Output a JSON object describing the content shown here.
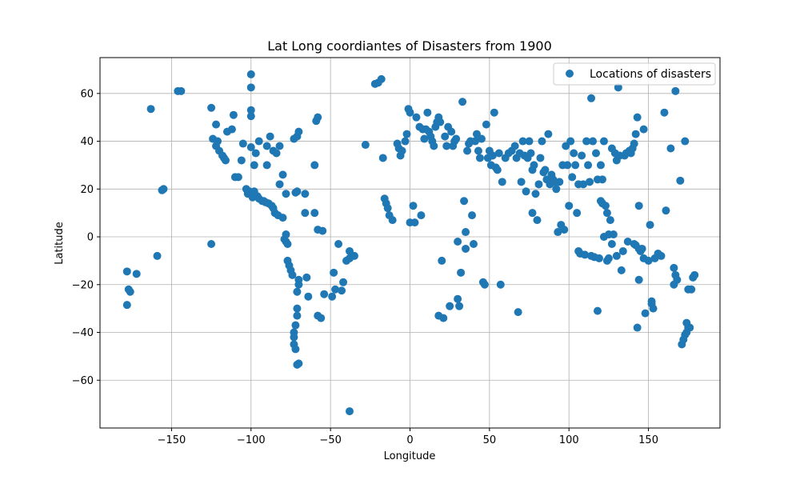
{
  "chart_data": {
    "type": "scatter",
    "title": "Lat Long coordiantes of Disasters from 1900",
    "xlabel": "Longitude",
    "ylabel": "Latitude",
    "xlim": [
      -195,
      195
    ],
    "ylim": [
      -80,
      75
    ],
    "xticks": [
      -150,
      -100,
      -50,
      0,
      50,
      100,
      150
    ],
    "yticks": [
      -60,
      -40,
      -20,
      0,
      20,
      40,
      60
    ],
    "xtick_labels": [
      "−150",
      "−100",
      "−50",
      "0",
      "50",
      "100",
      "150"
    ],
    "ytick_labels": [
      "−60",
      "−40",
      "−20",
      "0",
      "20",
      "40",
      "60"
    ],
    "grid": true,
    "legend_position": "top-right",
    "color": "#1f77b4",
    "series": [
      {
        "name": "Locations of disasters",
        "points": [
          [
            -178,
            -14.5
          ],
          [
            -177,
            -22
          ],
          [
            -176,
            -23
          ],
          [
            -178,
            -28.5
          ],
          [
            -172,
            -15.5
          ],
          [
            -159,
            -8
          ],
          [
            -156,
            19.5
          ],
          [
            -155,
            20
          ],
          [
            -146,
            61
          ],
          [
            -144,
            61
          ],
          [
            -163,
            53.5
          ],
          [
            -125,
            -3
          ],
          [
            -125,
            54
          ],
          [
            -124,
            41
          ],
          [
            -122,
            47
          ],
          [
            -122,
            38
          ],
          [
            -121,
            40
          ],
          [
            -120,
            36
          ],
          [
            -118,
            34
          ],
          [
            -117,
            33
          ],
          [
            -116,
            32
          ],
          [
            -115,
            44
          ],
          [
            -112,
            45
          ],
          [
            -111,
            51
          ],
          [
            -110,
            25
          ],
          [
            -108,
            25
          ],
          [
            -106,
            32
          ],
          [
            -105,
            39
          ],
          [
            -103,
            20
          ],
          [
            -102,
            18
          ],
          [
            -101,
            19
          ],
          [
            -100,
            68
          ],
          [
            -100,
            62.5
          ],
          [
            -100,
            53
          ],
          [
            -100,
            50.5
          ],
          [
            -100,
            37.5
          ],
          [
            -99,
            16.5
          ],
          [
            -98,
            19
          ],
          [
            -98,
            30
          ],
          [
            -97,
            35
          ],
          [
            -96,
            17
          ],
          [
            -95,
            16
          ],
          [
            -95,
            40
          ],
          [
            -93,
            15
          ],
          [
            -92,
            15
          ],
          [
            -91,
            14.5
          ],
          [
            -90,
            30
          ],
          [
            -90,
            38
          ],
          [
            -89,
            14
          ],
          [
            -88,
            42
          ],
          [
            -87,
            13
          ],
          [
            -86,
            12
          ],
          [
            -86,
            36
          ],
          [
            -85,
            10
          ],
          [
            -84,
            35
          ],
          [
            -83,
            9
          ],
          [
            -82,
            38
          ],
          [
            -82,
            22
          ],
          [
            -80,
            26
          ],
          [
            -80,
            8
          ],
          [
            -78,
            18
          ],
          [
            -78,
            1
          ],
          [
            -79,
            -1
          ],
          [
            -78,
            -2
          ],
          [
            -77,
            -3
          ],
          [
            -77,
            -10
          ],
          [
            -76,
            -12
          ],
          [
            -75,
            -14
          ],
          [
            -74,
            -16
          ],
          [
            -72,
            18.5
          ],
          [
            -71,
            19
          ],
          [
            -70,
            -18
          ],
          [
            -70,
            -20
          ],
          [
            -71,
            -23
          ],
          [
            -71,
            -30
          ],
          [
            -71,
            -33
          ],
          [
            -72,
            -37
          ],
          [
            -73,
            -40
          ],
          [
            -73,
            -42
          ],
          [
            -73,
            -45
          ],
          [
            -71,
            -53.5
          ],
          [
            -70,
            -53
          ],
          [
            -72,
            -47
          ],
          [
            -70,
            44
          ],
          [
            -71,
            42
          ],
          [
            -73,
            41
          ],
          [
            -66,
            18
          ],
          [
            -66,
            10
          ],
          [
            -65,
            -17
          ],
          [
            -64,
            -25
          ],
          [
            -60,
            10
          ],
          [
            -60,
            30
          ],
          [
            -59,
            48.5
          ],
          [
            -58,
            50
          ],
          [
            -58,
            3
          ],
          [
            -58,
            -33
          ],
          [
            -56,
            -34
          ],
          [
            -55,
            2.5
          ],
          [
            -54,
            -24
          ],
          [
            -49,
            -25
          ],
          [
            -48,
            -15
          ],
          [
            -47,
            -22
          ],
          [
            -45,
            -3
          ],
          [
            -43,
            -22.5
          ],
          [
            -42,
            -19
          ],
          [
            -40,
            -10
          ],
          [
            -38,
            -9
          ],
          [
            -38,
            -73
          ],
          [
            -38,
            -6
          ],
          [
            -35,
            -8
          ],
          [
            -28,
            38.5
          ],
          [
            -22,
            64
          ],
          [
            -20,
            64.5
          ],
          [
            -18,
            66
          ],
          [
            -17,
            33
          ],
          [
            -16,
            16
          ],
          [
            -15,
            14
          ],
          [
            -14,
            12
          ],
          [
            -13,
            9
          ],
          [
            -11,
            7
          ],
          [
            -8,
            39
          ],
          [
            -7,
            37
          ],
          [
            -6,
            34
          ],
          [
            -5,
            36
          ],
          [
            -3,
            40
          ],
          [
            -2,
            43
          ],
          [
            -1,
            53.5
          ],
          [
            0,
            52
          ],
          [
            0,
            6
          ],
          [
            2,
            13
          ],
          [
            3,
            6
          ],
          [
            4,
            50
          ],
          [
            6,
            46
          ],
          [
            7,
            9
          ],
          [
            8,
            45
          ],
          [
            9,
            41
          ],
          [
            10,
            45
          ],
          [
            11,
            52
          ],
          [
            12,
            44
          ],
          [
            13,
            42
          ],
          [
            14,
            40
          ],
          [
            15,
            38
          ],
          [
            16,
            46
          ],
          [
            17,
            48
          ],
          [
            18,
            50
          ],
          [
            18,
            -33
          ],
          [
            19,
            48
          ],
          [
            20,
            -10
          ],
          [
            21,
            -34
          ],
          [
            22,
            42
          ],
          [
            23,
            38
          ],
          [
            24,
            46
          ],
          [
            25,
            -29
          ],
          [
            26,
            44
          ],
          [
            27,
            38
          ],
          [
            28,
            40
          ],
          [
            29,
            41
          ],
          [
            30,
            -2
          ],
          [
            30,
            -26
          ],
          [
            31,
            -29
          ],
          [
            32,
            -15
          ],
          [
            33,
            56.5
          ],
          [
            34,
            15
          ],
          [
            35,
            2
          ],
          [
            35,
            -5
          ],
          [
            36,
            36
          ],
          [
            37,
            39
          ],
          [
            38,
            40
          ],
          [
            39,
            9
          ],
          [
            40,
            -3
          ],
          [
            41,
            40
          ],
          [
            42,
            43
          ],
          [
            43,
            36
          ],
          [
            44,
            33
          ],
          [
            45,
            41
          ],
          [
            46,
            -19
          ],
          [
            47,
            -20
          ],
          [
            48,
            47
          ],
          [
            49,
            33
          ],
          [
            50,
            36
          ],
          [
            51,
            30
          ],
          [
            52,
            34
          ],
          [
            53,
            52
          ],
          [
            54,
            29
          ],
          [
            55,
            28
          ],
          [
            56,
            35
          ],
          [
            57,
            -20
          ],
          [
            58,
            23
          ],
          [
            60,
            33
          ],
          [
            62,
            35
          ],
          [
            64,
            36
          ],
          [
            66,
            38
          ],
          [
            67,
            33
          ],
          [
            68,
            -31.5
          ],
          [
            69,
            35
          ],
          [
            70,
            23
          ],
          [
            71,
            40
          ],
          [
            72,
            34
          ],
          [
            73,
            19
          ],
          [
            74,
            33
          ],
          [
            75,
            40
          ],
          [
            76,
            35
          ],
          [
            77,
            10
          ],
          [
            77,
            28
          ],
          [
            78,
            30
          ],
          [
            79,
            18
          ],
          [
            80,
            7
          ],
          [
            81,
            22
          ],
          [
            82,
            33
          ],
          [
            83,
            40
          ],
          [
            84,
            27
          ],
          [
            85,
            28
          ],
          [
            86,
            24
          ],
          [
            87,
            43
          ],
          [
            88,
            22
          ],
          [
            89,
            26
          ],
          [
            90,
            24
          ],
          [
            91,
            23
          ],
          [
            92,
            20
          ],
          [
            93,
            2
          ],
          [
            94,
            23
          ],
          [
            95,
            5
          ],
          [
            96,
            30
          ],
          [
            97,
            3
          ],
          [
            98,
            38
          ],
          [
            99,
            30
          ],
          [
            100,
            13
          ],
          [
            101,
            40
          ],
          [
            102,
            25
          ],
          [
            103,
            35
          ],
          [
            104,
            30
          ],
          [
            105,
            10
          ],
          [
            106,
            -6
          ],
          [
            106,
            22
          ],
          [
            107,
            -7
          ],
          [
            108,
            34
          ],
          [
            109,
            22
          ],
          [
            110,
            -7.5
          ],
          [
            111,
            40
          ],
          [
            112,
            30
          ],
          [
            113,
            23
          ],
          [
            114,
            -8
          ],
          [
            114,
            58
          ],
          [
            115,
            40
          ],
          [
            116,
            -8.5
          ],
          [
            117,
            35
          ],
          [
            118,
            -31
          ],
          [
            118,
            24
          ],
          [
            119,
            -9
          ],
          [
            120,
            15
          ],
          [
            120,
            30
          ],
          [
            121,
            14
          ],
          [
            121,
            24
          ],
          [
            122,
            0
          ],
          [
            122,
            40
          ],
          [
            123,
            13
          ],
          [
            124,
            -10
          ],
          [
            124,
            10
          ],
          [
            125,
            -9
          ],
          [
            125,
            1
          ],
          [
            126,
            7
          ],
          [
            127,
            -3
          ],
          [
            127,
            37
          ],
          [
            128,
            1
          ],
          [
            129,
            35
          ],
          [
            130,
            32
          ],
          [
            130,
            -8
          ],
          [
            131,
            62.5
          ],
          [
            132,
            34
          ],
          [
            133,
            -14
          ],
          [
            134,
            -6
          ],
          [
            135,
            34
          ],
          [
            136,
            35
          ],
          [
            137,
            -2
          ],
          [
            138,
            36
          ],
          [
            139,
            35
          ],
          [
            140,
            37
          ],
          [
            141,
            39
          ],
          [
            141,
            -3
          ],
          [
            142,
            43
          ],
          [
            142,
            -3.5
          ],
          [
            143,
            50
          ],
          [
            143,
            -38
          ],
          [
            144,
            -5
          ],
          [
            144,
            13
          ],
          [
            144,
            -18
          ],
          [
            145,
            -6
          ],
          [
            146,
            -5
          ],
          [
            147,
            -9
          ],
          [
            147,
            45
          ],
          [
            148,
            -32
          ],
          [
            150,
            -10
          ],
          [
            151,
            5
          ],
          [
            152,
            -27
          ],
          [
            152,
            -28
          ],
          [
            153,
            -30
          ],
          [
            154,
            -9
          ],
          [
            156,
            -7
          ],
          [
            158,
            -8
          ],
          [
            160,
            52
          ],
          [
            161,
            11
          ],
          [
            164,
            37
          ],
          [
            166,
            -13
          ],
          [
            167,
            -16
          ],
          [
            167,
            61
          ],
          [
            168,
            -18
          ],
          [
            170,
            23.5
          ],
          [
            171,
            -45
          ],
          [
            172,
            -43
          ],
          [
            173,
            -41
          ],
          [
            174,
            -40
          ],
          [
            175,
            -38
          ],
          [
            176,
            -38
          ],
          [
            177,
            -22
          ],
          [
            178,
            -17
          ],
          [
            179,
            -16
          ],
          [
            173,
            40
          ],
          [
            174,
            -36
          ],
          [
            175,
            -22
          ],
          [
            166,
            -20
          ]
        ]
      }
    ]
  }
}
